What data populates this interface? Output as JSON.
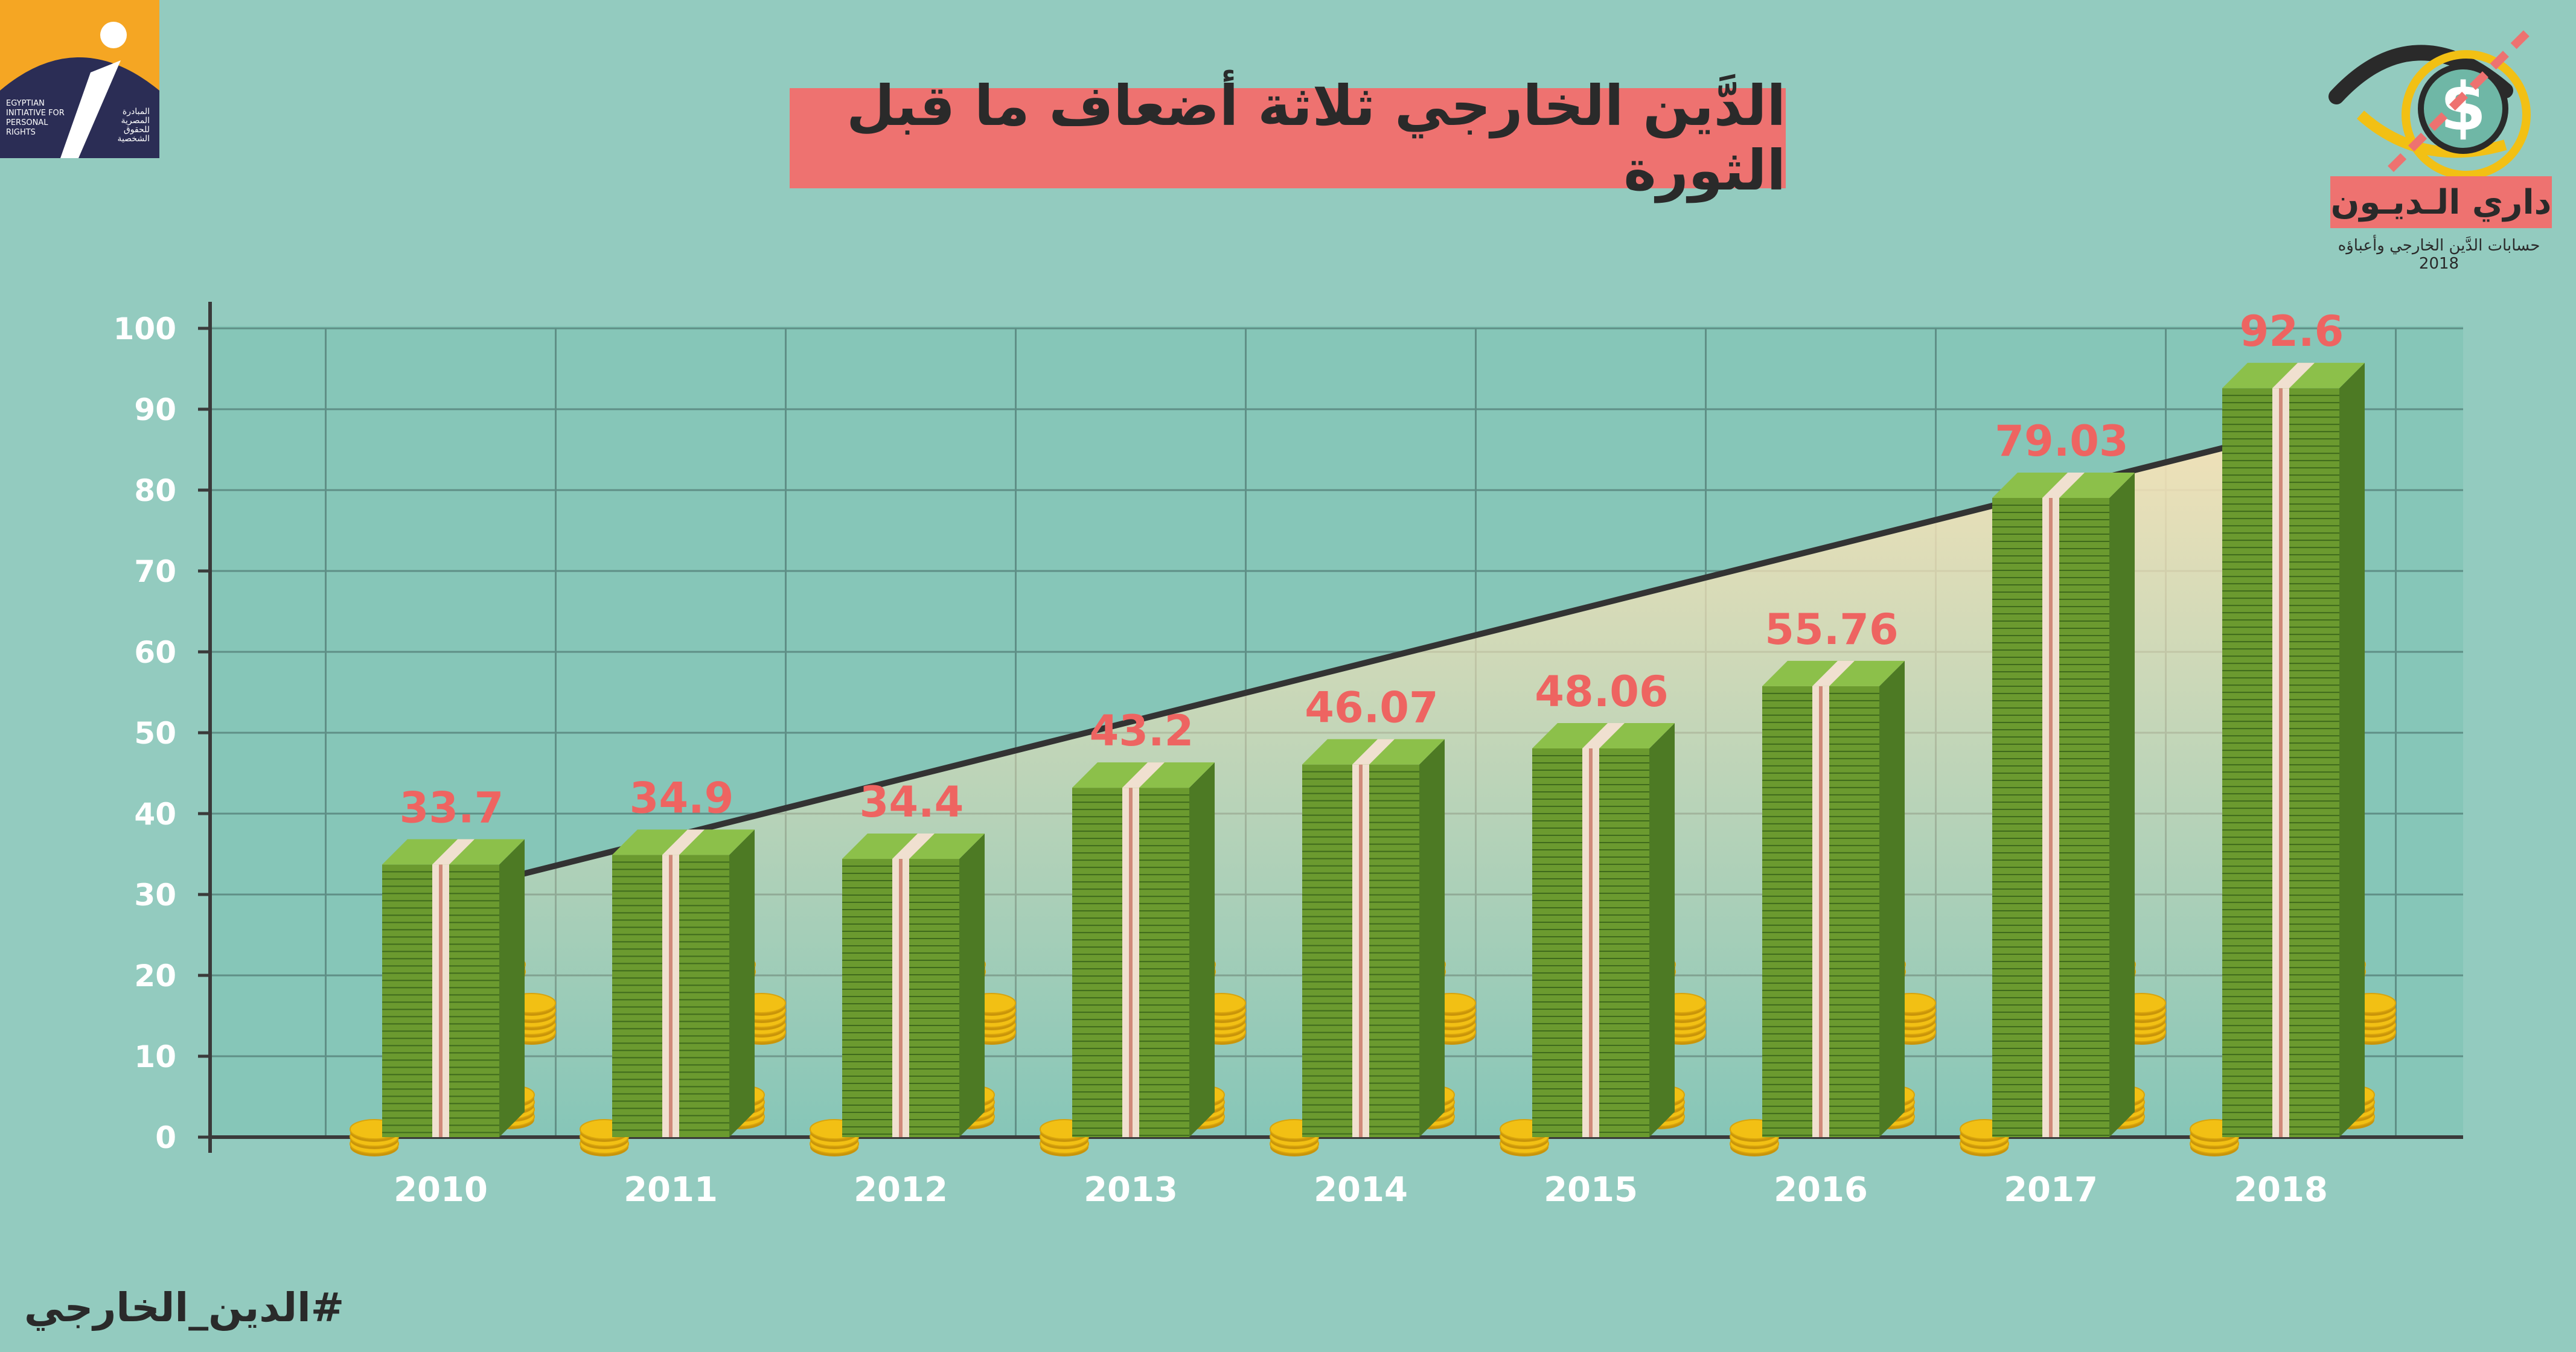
{
  "title": "الدَّين الخارجي ثلاثة أضعاف ما قبل الثورة",
  "org_logo": {
    "name_en": "EGYPTIAN INITIATIVE FOR PERSONAL RIGHTS",
    "name_ar": "المبادرة المصرية للحقوق الشخصية"
  },
  "brand": {
    "name": "داري الـديـون",
    "tagline": "حسابات الدَّين الخارجي وأعباؤه 2018"
  },
  "hashtag": "#الدين_الخارجي",
  "colors": {
    "background": "#93cbbf",
    "plot_bg": "#86c6b8",
    "title_bg": "#ee7270",
    "bill_green": "#6b9a2f",
    "bill_dark": "#4d7a24",
    "band": "#f0e0d0",
    "value_label": "#ee6461",
    "coin": "#f2c014",
    "trend_line": "#333333"
  },
  "chart_data": {
    "type": "bar",
    "categories": [
      "2010",
      "2011",
      "2012",
      "2013",
      "2014",
      "2015",
      "2016",
      "2017",
      "2018"
    ],
    "values": [
      33.7,
      34.9,
      34.4,
      43.2,
      46.07,
      48.06,
      55.76,
      79.03,
      92.6
    ],
    "value_labels": [
      "33.7",
      "34.9",
      "34.4",
      "43.2",
      "46.07",
      "48.06",
      "55.76",
      "79.03",
      "92.6"
    ],
    "yticks": [
      0,
      10,
      20,
      30,
      40,
      50,
      60,
      70,
      80,
      90,
      100
    ],
    "ylim": [
      0,
      100
    ],
    "grid": true,
    "trend_line": {
      "from": [
        "2010",
        30
      ],
      "to": [
        "2018",
        87
      ]
    },
    "title": "الدَّين الخارجي ثلاثة أضعاف ما قبل الثورة",
    "xlabel": "",
    "ylabel": ""
  }
}
